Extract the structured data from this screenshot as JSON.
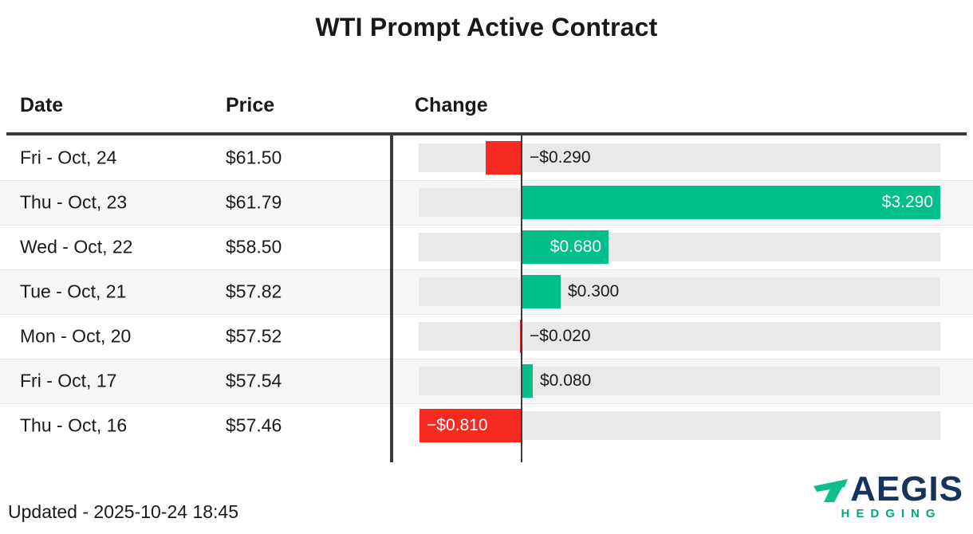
{
  "title": "WTI Prompt Active Contract",
  "table": {
    "headers": {
      "date": "Date",
      "price": "Price",
      "change": "Change"
    }
  },
  "chart_data": {
    "type": "bar",
    "orientation": "horizontal",
    "title": "WTI Prompt Active Contract",
    "categories": [
      "Fri - Oct, 24",
      "Thu - Oct, 23",
      "Wed - Oct, 22",
      "Tue - Oct, 21",
      "Mon - Oct, 20",
      "Fri - Oct, 17",
      "Thu - Oct, 16"
    ],
    "rows": [
      {
        "date": "Fri - Oct, 24",
        "price": "$61.50",
        "change": -0.29,
        "change_label": "−$0.290"
      },
      {
        "date": "Thu - Oct, 23",
        "price": "$61.79",
        "change": 3.29,
        "change_label": "$3.290"
      },
      {
        "date": "Wed - Oct, 22",
        "price": "$58.50",
        "change": 0.68,
        "change_label": "$0.680"
      },
      {
        "date": "Tue - Oct, 21",
        "price": "$57.82",
        "change": 0.3,
        "change_label": "$0.300"
      },
      {
        "date": "Mon - Oct, 20",
        "price": "$57.52",
        "change": -0.02,
        "change_label": "−$0.020"
      },
      {
        "date": "Fri - Oct, 17",
        "price": "$57.54",
        "change": 0.08,
        "change_label": "$0.080"
      },
      {
        "date": "Thu - Oct, 16",
        "price": "$57.46",
        "change": -0.81,
        "change_label": "−$0.810"
      }
    ],
    "xlim": [
      -0.81,
      3.29
    ],
    "grid": false,
    "legend": "none",
    "colors": {
      "positive": "#00BF8A",
      "negative": "#F42B1E",
      "track": "#E9E9E9",
      "stripe_row": "#F5F6F5",
      "axis_line": "#3A3A3A",
      "label_inside": "#FFFFFF",
      "label_outside": "#1A1A1A"
    }
  },
  "footer": {
    "updated": "Updated - 2025-10-24 18:45"
  },
  "logo": {
    "name": "AEGIS",
    "subtitle": "HEDGING",
    "colors": {
      "navy": "#16335B",
      "teal": "#0EBE8C",
      "sub_teal": "#00A87D"
    }
  }
}
